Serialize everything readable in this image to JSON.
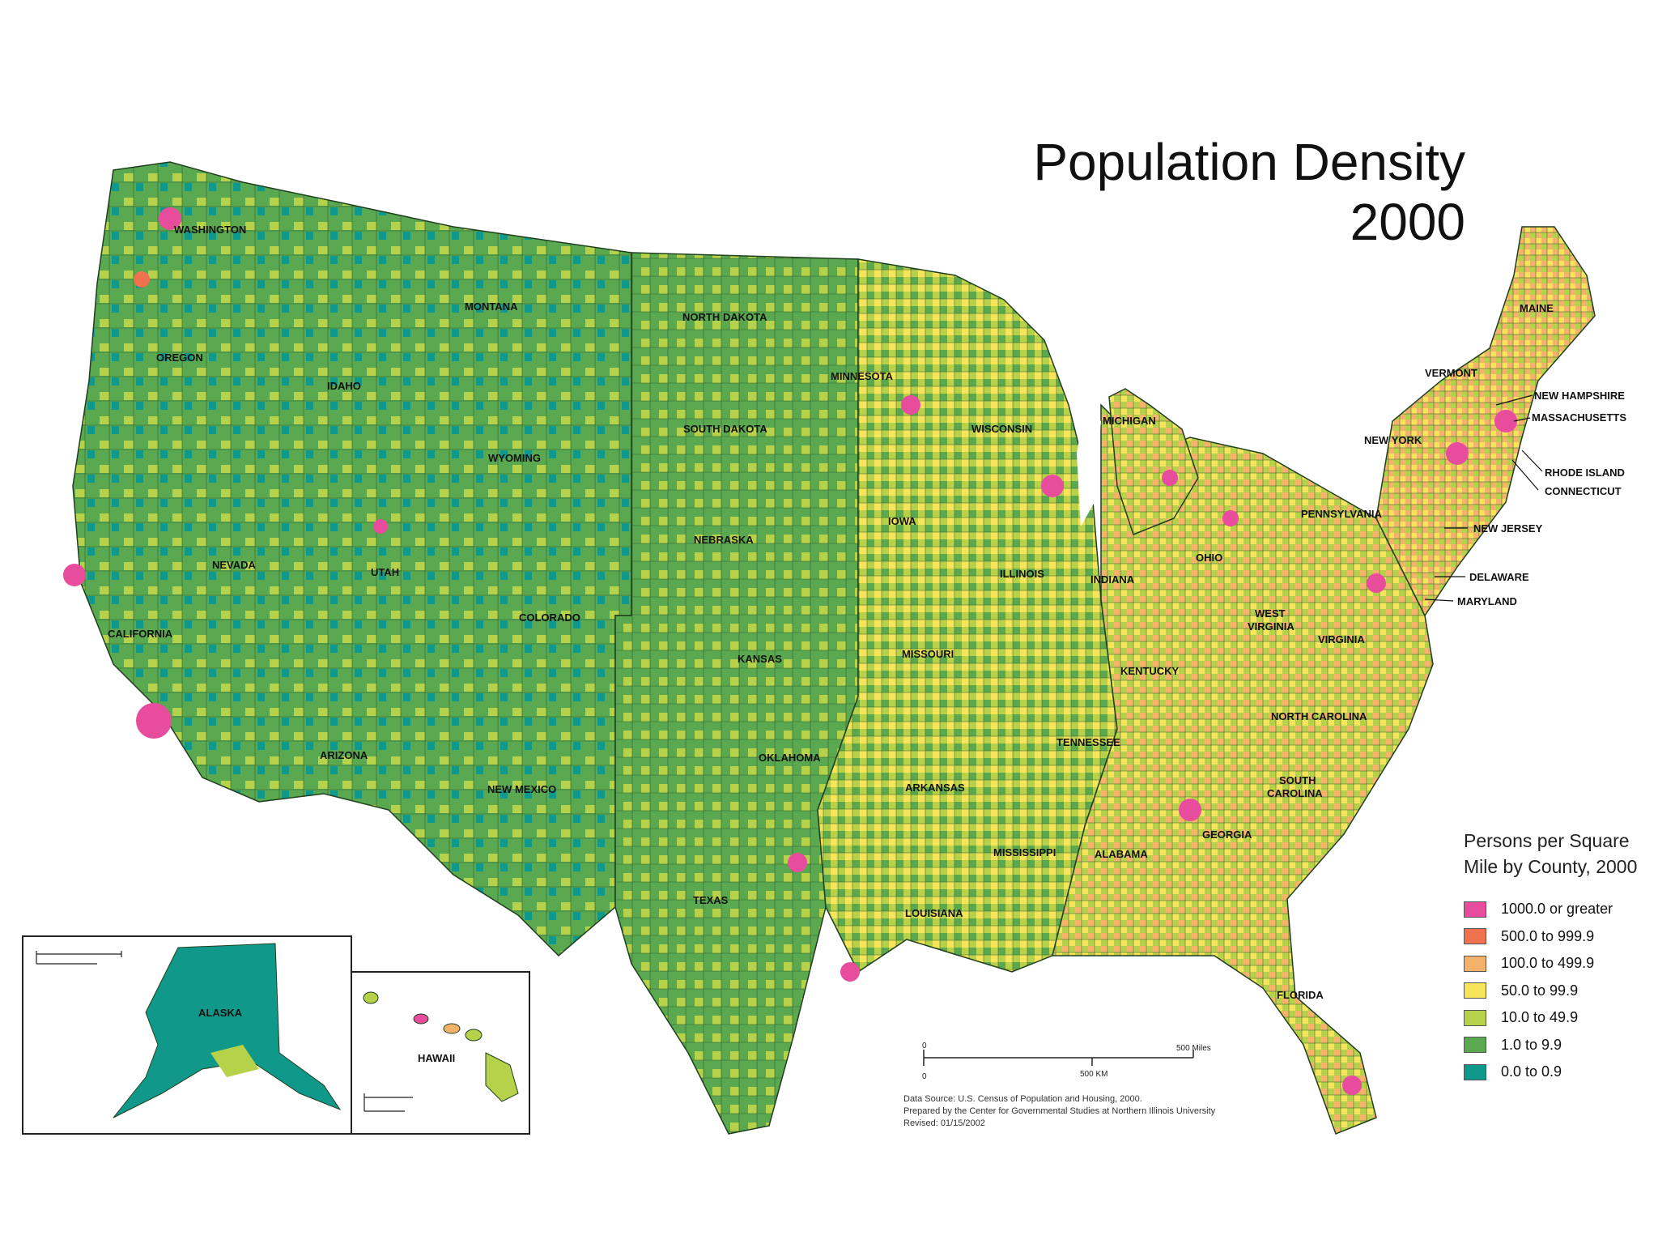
{
  "title": {
    "line1": "Population Density",
    "line2": "2000"
  },
  "legend": {
    "title_line1": "Persons per Square",
    "title_line2": "Mile by County, 2000",
    "classes": [
      {
        "label": "1000.0 or greater",
        "color": "#e84c9c"
      },
      {
        "label": "500.0 to 999.9",
        "color": "#f0714d"
      },
      {
        "label": "100.0 to 499.9",
        "color": "#f5b26a"
      },
      {
        "label": "50.0 to 99.9",
        "color": "#f6e45a"
      },
      {
        "label": "10.0 to 49.9",
        "color": "#b5d24a"
      },
      {
        "label": "1.0 to 9.9",
        "color": "#5aa850"
      },
      {
        "label": "0.0 to 0.9",
        "color": "#10998a"
      }
    ]
  },
  "states": {
    "washington": "WASHINGTON",
    "oregon": "OREGON",
    "california": "CALIFORNIA",
    "nevada": "NEVADA",
    "idaho": "IDAHO",
    "montana": "MONTANA",
    "wyoming": "WYOMING",
    "utah": "UTAH",
    "arizona": "ARIZONA",
    "colorado": "COLORADO",
    "new_mexico": "NEW MEXICO",
    "north_dakota": "NORTH DAKOTA",
    "south_dakota": "SOUTH DAKOTA",
    "nebraska": "NEBRASKA",
    "kansas": "KANSAS",
    "oklahoma": "OKLAHOMA",
    "texas": "TEXAS",
    "minnesota": "MINNESOTA",
    "iowa": "IOWA",
    "missouri": "MISSOURI",
    "arkansas": "ARKANSAS",
    "louisiana": "LOUISIANA",
    "wisconsin": "WISCONSIN",
    "illinois": "ILLINOIS",
    "michigan": "MICHIGAN",
    "indiana": "INDIANA",
    "ohio": "OHIO",
    "kentucky": "KENTUCKY",
    "tennessee": "TENNESSEE",
    "mississippi": "MISSISSIPPI",
    "alabama": "ALABAMA",
    "georgia": "GEORGIA",
    "florida": "FLORIDA",
    "south_carolina_1": "SOUTH",
    "south_carolina_2": "CAROLINA",
    "north_carolina": "NORTH CAROLINA",
    "virginia": "VIRGINIA",
    "west_virginia_1": "WEST",
    "west_virginia_2": "VIRGINIA",
    "pennsylvania": "PENNSYLVANIA",
    "new_york": "NEW YORK",
    "vermont": "VERMONT",
    "maine": "MAINE",
    "alaska": "ALASKA",
    "hawaii": "HAWAII"
  },
  "callouts": {
    "new_hampshire": "NEW HAMPSHIRE",
    "massachusetts": "MASSACHUSETTS",
    "rhode_island": "RHODE ISLAND",
    "connecticut": "CONNECTICUT",
    "new_jersey": "NEW JERSEY",
    "delaware": "DELAWARE",
    "maryland": "MARYLAND"
  },
  "scale_bar": {
    "zero_top": "0",
    "zero_bottom": "0",
    "miles": "500 Miles",
    "km": "500 KM"
  },
  "credits": {
    "line1": "Data Source: U.S. Census of Population and Housing, 2000.",
    "line2": "Prepared by the Center for Governmental Studies at Northern Illinois University",
    "line3": "Revised: 01/15/2002"
  }
}
